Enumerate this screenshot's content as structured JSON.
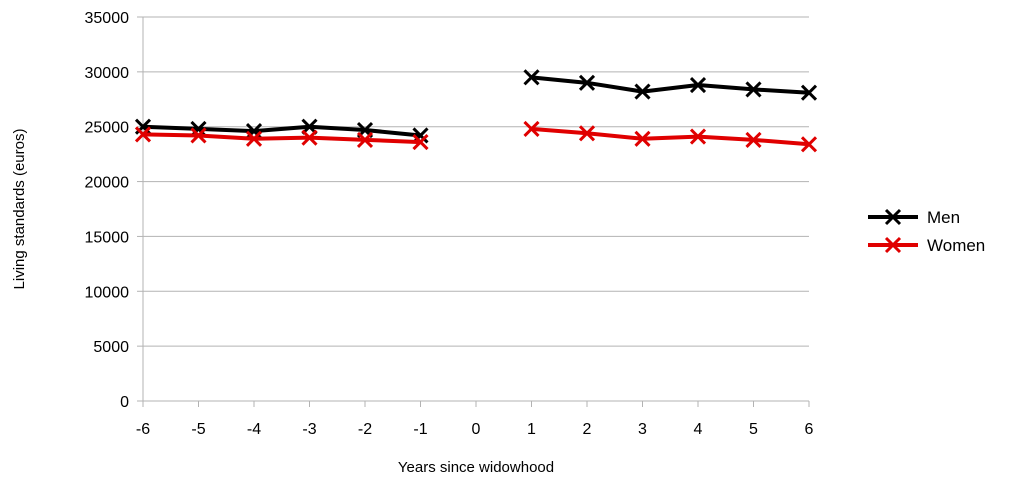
{
  "chart_data": {
    "type": "line",
    "xlabel": "Years since widowhood",
    "ylabel": "Living  standards  (euros)",
    "ylim": [
      0,
      35000
    ],
    "yticks": [
      0,
      5000,
      10000,
      15000,
      20000,
      25000,
      30000,
      35000
    ],
    "x_categories": [
      "-6",
      "-5",
      "-4",
      "-3",
      "-2",
      "-1",
      "0",
      "1",
      "2",
      "3",
      "4",
      "5",
      "6"
    ],
    "grid": "horizontal",
    "legend_position": "right",
    "series": [
      {
        "name": "Men",
        "color": "#000000",
        "marker": "x",
        "x": [
          -6,
          -5,
          -4,
          -3,
          -2,
          -1,
          0,
          1,
          2,
          3,
          4,
          5,
          6
        ],
        "values": [
          25000,
          24800,
          24600,
          25000,
          24700,
          24200,
          null,
          29500,
          29000,
          28200,
          28800,
          28400,
          28100
        ]
      },
      {
        "name": "Women",
        "color": "#e00000",
        "marker": "x",
        "x": [
          -6,
          -5,
          -4,
          -3,
          -2,
          -1,
          0,
          1,
          2,
          3,
          4,
          5,
          6
        ],
        "values": [
          24300,
          24200,
          23900,
          24000,
          23800,
          23600,
          null,
          24800,
          24400,
          23900,
          24100,
          23800,
          23400
        ]
      }
    ]
  }
}
